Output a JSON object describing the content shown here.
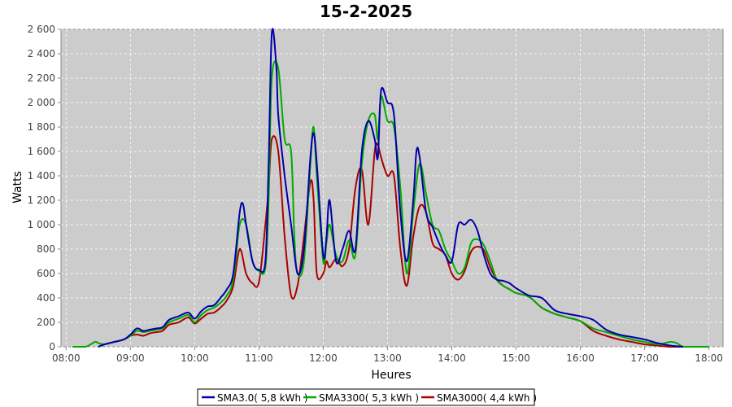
{
  "chart_data": {
    "type": "line",
    "title": "15-2-2025",
    "xlabel": "Heures",
    "ylabel": "Watts",
    "xlim": [
      7.92,
      18.22
    ],
    "ylim": [
      0,
      2600
    ],
    "yticks": [
      0,
      200,
      400,
      600,
      800,
      1000,
      1200,
      1400,
      1600,
      1800,
      2000,
      2200,
      2400,
      2600
    ],
    "ytick_labels": [
      "0",
      "200",
      "400",
      "600",
      "800",
      "1 000",
      "1 200",
      "1 400",
      "1 600",
      "1 800",
      "2 000",
      "2 200",
      "2 400",
      "2 600"
    ],
    "xticks": [
      8,
      9,
      10,
      11,
      12,
      13,
      14,
      15,
      16,
      17,
      18
    ],
    "xtick_labels": [
      "08:00",
      "09:00",
      "10:00",
      "11:00",
      "12:00",
      "13:00",
      "14:00",
      "15:00",
      "16:00",
      "17:00",
      "18:00"
    ],
    "grid": true,
    "legend_position": "bottom",
    "series": [
      {
        "name": "SMA3.0( 5,8 kWh )",
        "color": "#0000aa",
        "x": [
          8.5,
          8.6,
          8.75,
          8.9,
          9.0,
          9.1,
          9.2,
          9.3,
          9.4,
          9.5,
          9.6,
          9.75,
          9.9,
          10.0,
          10.1,
          10.2,
          10.3,
          10.4,
          10.5,
          10.6,
          10.7,
          10.75,
          10.8,
          10.9,
          11.0,
          11.1,
          11.15,
          11.2,
          11.27,
          11.3,
          11.4,
          11.5,
          11.6,
          11.7,
          11.8,
          11.85,
          11.9,
          12.0,
          12.05,
          12.1,
          12.2,
          12.3,
          12.4,
          12.5,
          12.6,
          12.7,
          12.8,
          12.85,
          12.9,
          13.0,
          13.1,
          13.2,
          13.3,
          13.4,
          13.45,
          13.5,
          13.6,
          13.7,
          13.8,
          13.9,
          14.0,
          14.1,
          14.2,
          14.3,
          14.4,
          14.5,
          14.6,
          14.7,
          14.8,
          14.9,
          15.0,
          15.2,
          15.4,
          15.6,
          15.8,
          16.0,
          16.2,
          16.4,
          16.6,
          16.8,
          17.0,
          17.2,
          17.4,
          17.6
        ],
        "values": [
          0,
          20,
          40,
          60,
          100,
          150,
          130,
          140,
          150,
          160,
          220,
          250,
          280,
          230,
          290,
          330,
          340,
          400,
          470,
          600,
          1100,
          1170,
          1000,
          700,
          630,
          700,
          1500,
          2570,
          2300,
          1900,
          1400,
          1000,
          600,
          800,
          1550,
          1750,
          1500,
          750,
          900,
          1200,
          700,
          800,
          950,
          800,
          1600,
          1850,
          1700,
          1550,
          2100,
          2000,
          1900,
          1100,
          700,
          1200,
          1600,
          1550,
          1100,
          980,
          850,
          750,
          700,
          1000,
          1000,
          1040,
          950,
          750,
          600,
          550,
          540,
          520,
          480,
          420,
          400,
          300,
          270,
          250,
          220,
          140,
          100,
          80,
          60,
          30,
          10,
          0
        ]
      },
      {
        "name": "SMA3300( 5,3 kWh )",
        "color": "#00aa00",
        "x": [
          8.1,
          8.3,
          8.45,
          8.5,
          8.6,
          8.75,
          8.9,
          9.0,
          9.1,
          9.2,
          9.3,
          9.4,
          9.5,
          9.6,
          9.75,
          9.9,
          10.0,
          10.1,
          10.2,
          10.3,
          10.4,
          10.5,
          10.6,
          10.7,
          10.8,
          10.9,
          11.0,
          11.1,
          11.15,
          11.2,
          11.3,
          11.4,
          11.5,
          11.55,
          11.6,
          11.7,
          11.8,
          11.85,
          11.9,
          12.0,
          12.05,
          12.1,
          12.2,
          12.3,
          12.4,
          12.5,
          12.6,
          12.7,
          12.8,
          12.85,
          12.9,
          13.0,
          13.1,
          13.2,
          13.3,
          13.4,
          13.5,
          13.6,
          13.7,
          13.8,
          13.9,
          14.0,
          14.1,
          14.2,
          14.3,
          14.4,
          14.5,
          14.6,
          14.7,
          14.8,
          14.9,
          15.0,
          15.2,
          15.4,
          15.6,
          15.8,
          16.0,
          16.2,
          16.4,
          16.6,
          16.8,
          17.0,
          17.2,
          17.4,
          17.5,
          17.6,
          17.8,
          18.0
        ],
        "values": [
          0,
          0,
          40,
          30,
          20,
          40,
          60,
          90,
          130,
          120,
          130,
          140,
          150,
          200,
          230,
          260,
          200,
          260,
          300,
          320,
          360,
          420,
          550,
          1000,
          1000,
          700,
          620,
          650,
          1200,
          2200,
          2280,
          1700,
          1600,
          900,
          600,
          700,
          1500,
          1800,
          1400,
          700,
          850,
          1000,
          750,
          700,
          870,
          750,
          1500,
          1850,
          1900,
          1700,
          2050,
          1850,
          1800,
          1300,
          600,
          1100,
          1500,
          1250,
          1000,
          950,
          800,
          700,
          600,
          650,
          850,
          880,
          830,
          700,
          550,
          500,
          470,
          440,
          410,
          320,
          270,
          240,
          210,
          150,
          120,
          90,
          60,
          40,
          20,
          40,
          30,
          0,
          0,
          0
        ]
      },
      {
        "name": "SMA3000( 4,4 kWh )",
        "color": "#aa0000",
        "x": [
          8.5,
          8.6,
          8.75,
          8.9,
          9.0,
          9.1,
          9.2,
          9.3,
          9.4,
          9.5,
          9.6,
          9.75,
          9.9,
          10.0,
          10.1,
          10.2,
          10.3,
          10.4,
          10.5,
          10.6,
          10.7,
          10.8,
          10.9,
          11.0,
          11.1,
          11.15,
          11.2,
          11.3,
          11.4,
          11.5,
          11.6,
          11.7,
          11.8,
          11.85,
          11.9,
          12.0,
          12.05,
          12.1,
          12.2,
          12.3,
          12.4,
          12.5,
          12.6,
          12.7,
          12.8,
          12.85,
          12.9,
          13.0,
          13.1,
          13.2,
          13.3,
          13.4,
          13.5,
          13.6,
          13.7,
          13.8,
          13.9,
          14.0,
          14.1,
          14.2,
          14.3,
          14.4,
          14.5,
          14.6,
          14.7,
          14.8,
          14.9,
          15.0,
          15.2,
          15.4,
          15.6,
          15.8,
          16.0,
          16.2,
          16.4,
          16.6,
          16.8,
          17.0,
          17.2,
          17.4,
          17.6
        ],
        "values": [
          0,
          20,
          40,
          60,
          90,
          100,
          90,
          110,
          120,
          130,
          180,
          200,
          240,
          190,
          230,
          270,
          280,
          320,
          380,
          500,
          800,
          600,
          520,
          530,
          1000,
          1300,
          1700,
          1600,
          900,
          420,
          500,
          900,
          1350,
          1200,
          600,
          600,
          700,
          650,
          720,
          660,
          800,
          1300,
          1450,
          1000,
          1600,
          1650,
          1550,
          1400,
          1400,
          800,
          500,
          900,
          1150,
          1100,
          850,
          800,
          750,
          600,
          550,
          620,
          780,
          820,
          790,
          650,
          550,
          500,
          470,
          440,
          410,
          320,
          270,
          240,
          210,
          130,
          90,
          60,
          40,
          20,
          10,
          0,
          0
        ]
      }
    ]
  }
}
